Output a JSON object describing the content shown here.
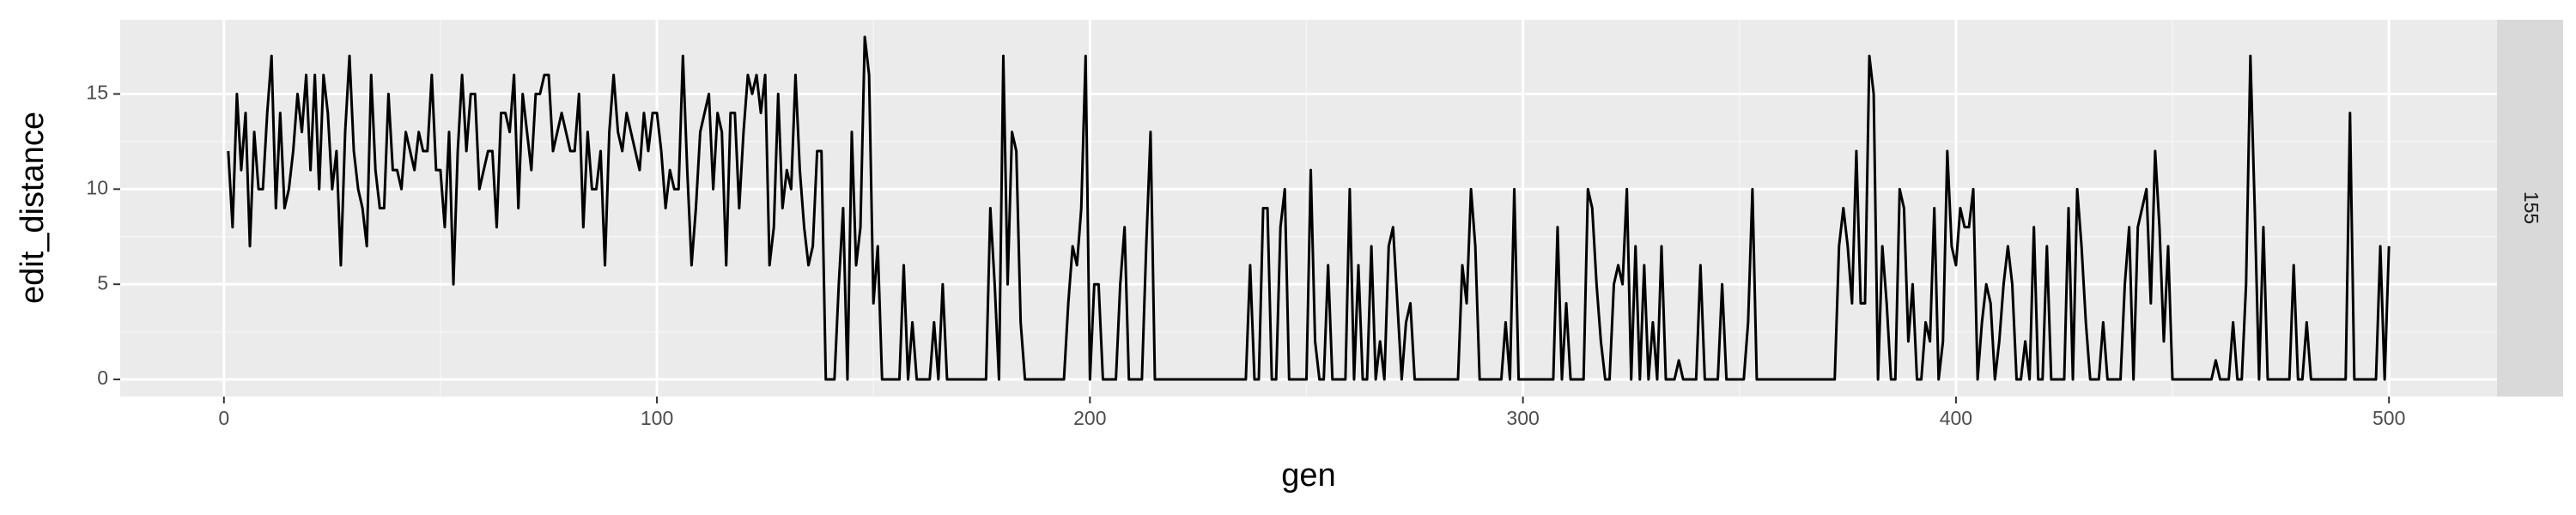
{
  "chart_data": {
    "type": "line",
    "x_label": "gen",
    "y_label": "edit_distance",
    "facet_label": "155",
    "x": [
      1,
      2,
      3,
      4,
      5,
      6,
      7,
      8,
      9,
      10,
      11,
      12,
      13,
      14,
      15,
      16,
      17,
      18,
      19,
      20,
      21,
      22,
      23,
      24,
      25,
      26,
      27,
      28,
      29,
      30,
      31,
      32,
      33,
      34,
      35,
      36,
      37,
      38,
      39,
      40,
      41,
      42,
      43,
      44,
      45,
      46,
      47,
      48,
      49,
      50,
      51,
      52,
      53,
      54,
      55,
      56,
      57,
      58,
      59,
      60,
      61,
      62,
      63,
      64,
      65,
      66,
      67,
      68,
      69,
      70,
      71,
      72,
      73,
      74,
      75,
      76,
      77,
      78,
      79,
      80,
      81,
      82,
      83,
      84,
      85,
      86,
      87,
      88,
      89,
      90,
      91,
      92,
      93,
      94,
      95,
      96,
      97,
      98,
      99,
      100,
      101,
      102,
      103,
      104,
      105,
      106,
      107,
      108,
      109,
      110,
      111,
      112,
      113,
      114,
      115,
      116,
      117,
      118,
      119,
      120,
      121,
      122,
      123,
      124,
      125,
      126,
      127,
      128,
      129,
      130,
      131,
      132,
      133,
      134,
      135,
      136,
      137,
      138,
      139,
      140,
      141,
      142,
      143,
      144,
      145,
      146,
      147,
      148,
      149,
      150,
      151,
      152,
      153,
      154,
      155,
      156,
      157,
      158,
      159,
      160,
      161,
      162,
      163,
      164,
      165,
      166,
      167,
      168,
      169,
      170,
      171,
      172,
      173,
      174,
      175,
      176,
      177,
      178,
      179,
      180,
      181,
      182,
      183,
      184,
      185,
      186,
      187,
      188,
      189,
      190,
      191,
      192,
      193,
      194,
      195,
      196,
      197,
      198,
      199,
      200,
      201,
      202,
      203,
      204,
      205,
      206,
      207,
      208,
      209,
      210,
      211,
      212,
      213,
      214,
      215,
      216,
      217,
      218,
      219,
      220,
      221,
      222,
      223,
      224,
      225,
      226,
      227,
      228,
      229,
      230,
      231,
      232,
      233,
      234,
      235,
      236,
      237,
      238,
      239,
      240,
      241,
      242,
      243,
      244,
      245,
      246,
      247,
      248,
      249,
      250,
      251,
      252,
      253,
      254,
      255,
      256,
      257,
      258,
      259,
      260,
      261,
      262,
      263,
      264,
      265,
      266,
      267,
      268,
      269,
      270,
      271,
      272,
      273,
      274,
      275,
      276,
      277,
      278,
      279,
      280,
      281,
      282,
      283,
      284,
      285,
      286,
      287,
      288,
      289,
      290,
      291,
      292,
      293,
      294,
      295,
      296,
      297,
      298,
      299,
      300,
      301,
      302,
      303,
      304,
      305,
      306,
      307,
      308,
      309,
      310,
      311,
      312,
      313,
      314,
      315,
      316,
      317,
      318,
      319,
      320,
      321,
      322,
      323,
      324,
      325,
      326,
      327,
      328,
      329,
      330,
      331,
      332,
      333,
      334,
      335,
      336,
      337,
      338,
      339,
      340,
      341,
      342,
      343,
      344,
      345,
      346,
      347,
      348,
      349,
      350,
      351,
      352,
      353,
      354,
      355,
      356,
      357,
      358,
      359,
      360,
      361,
      362,
      363,
      364,
      365,
      366,
      367,
      368,
      369,
      370,
      371,
      372,
      373,
      374,
      375,
      376,
      377,
      378,
      379,
      380,
      381,
      382,
      383,
      384,
      385,
      386,
      387,
      388,
      389,
      390,
      391,
      392,
      393,
      394,
      395,
      396,
      397,
      398,
      399,
      400,
      401,
      402,
      403,
      404,
      405,
      406,
      407,
      408,
      409,
      410,
      411,
      412,
      413,
      414,
      415,
      416,
      417,
      418,
      419,
      420,
      421,
      422,
      423,
      424,
      425,
      426,
      427,
      428,
      429,
      430,
      431,
      432,
      433,
      434,
      435,
      436,
      437,
      438,
      439,
      440,
      441,
      442,
      443,
      444,
      445,
      446,
      447,
      448,
      449,
      450,
      451,
      452,
      453,
      454,
      455,
      456,
      457,
      458,
      459,
      460,
      461,
      462,
      463,
      464,
      465,
      466,
      467,
      468,
      469,
      470,
      471,
      472,
      473,
      474,
      475,
      476,
      477,
      478,
      479,
      480,
      481,
      482,
      483,
      484,
      485,
      486,
      487,
      488,
      489,
      490,
      491,
      492,
      493,
      494,
      495,
      496,
      497,
      498,
      499,
      500
    ],
    "series": [
      {
        "color": "#000000",
        "values": [
          12,
          8,
          15,
          11,
          14,
          7,
          13,
          10,
          10,
          14,
          17,
          9,
          14,
          9,
          10,
          12,
          15,
          13,
          16,
          11,
          16,
          10,
          16,
          14,
          10,
          12,
          6,
          13,
          17,
          12,
          10,
          9,
          7,
          16,
          11,
          9,
          9,
          15,
          11,
          11,
          10,
          13,
          12,
          11,
          13,
          12,
          12,
          16,
          11,
          11,
          8,
          13,
          5,
          12,
          16,
          12,
          15,
          15,
          10,
          11,
          12,
          12,
          8,
          14,
          14,
          13,
          16,
          9,
          15,
          13,
          11,
          15,
          15,
          16,
          16,
          12,
          13,
          14,
          13,
          12,
          12,
          15,
          8,
          13,
          10,
          10,
          12,
          6,
          13,
          16,
          13,
          12,
          14,
          13,
          12,
          11,
          14,
          12,
          14,
          14,
          12,
          9,
          11,
          10,
          10,
          17,
          11,
          6,
          9,
          13,
          14,
          15,
          10,
          14,
          13,
          6,
          14,
          14,
          9,
          13,
          16,
          15,
          16,
          14,
          16,
          6,
          8,
          15,
          9,
          11,
          10,
          16,
          11,
          8,
          6,
          7,
          12,
          12,
          0,
          0,
          0,
          5,
          9,
          0,
          13,
          6,
          8,
          18,
          16,
          4,
          7,
          0,
          0,
          0,
          0,
          0,
          6,
          0,
          3,
          0,
          0,
          0,
          0,
          3,
          0,
          5,
          0,
          0,
          0,
          0,
          0,
          0,
          0,
          0,
          0,
          0,
          9,
          5,
          0,
          17,
          5,
          13,
          12,
          3,
          0,
          0,
          0,
          0,
          0,
          0,
          0,
          0,
          0,
          0,
          4,
          7,
          6,
          9,
          17,
          0,
          5,
          5,
          0,
          0,
          0,
          0,
          5,
          8,
          0,
          0,
          0,
          0,
          7,
          13,
          0,
          0,
          0,
          0,
          0,
          0,
          0,
          0,
          0,
          0,
          0,
          0,
          0,
          0,
          0,
          0,
          0,
          0,
          0,
          0,
          0,
          0,
          6,
          0,
          0,
          9,
          9,
          0,
          0,
          8,
          10,
          0,
          0,
          0,
          0,
          0,
          11,
          2,
          0,
          0,
          6,
          0,
          0,
          0,
          0,
          10,
          0,
          6,
          0,
          0,
          7,
          0,
          2,
          0,
          7,
          8,
          4,
          0,
          3,
          4,
          0,
          0,
          0,
          0,
          0,
          0,
          0,
          0,
          0,
          0,
          0,
          6,
          4,
          10,
          7,
          0,
          0,
          0,
          0,
          0,
          0,
          3,
          0,
          10,
          0,
          0,
          0,
          0,
          0,
          0,
          0,
          0,
          0,
          8,
          0,
          4,
          0,
          0,
          0,
          0,
          10,
          9,
          5,
          2,
          0,
          0,
          5,
          6,
          5,
          10,
          0,
          7,
          0,
          6,
          0,
          3,
          0,
          7,
          0,
          0,
          0,
          1,
          0,
          0,
          0,
          0,
          6,
          0,
          0,
          0,
          0,
          5,
          0,
          0,
          0,
          0,
          0,
          3,
          10,
          0,
          0,
          0,
          0,
          0,
          0,
          0,
          0,
          0,
          0,
          0,
          0,
          0,
          0,
          0,
          0,
          0,
          0,
          0,
          7,
          9,
          7,
          4,
          12,
          4,
          4,
          17,
          15,
          0,
          7,
          4,
          0,
          0,
          10,
          9,
          2,
          5,
          0,
          0,
          3,
          2,
          9,
          0,
          2,
          12,
          7,
          6,
          9,
          8,
          8,
          10,
          0,
          3,
          5,
          4,
          0,
          2,
          5,
          7,
          5,
          0,
          0,
          2,
          0,
          8,
          0,
          0,
          7,
          0,
          0,
          0,
          0,
          9,
          0,
          10,
          7,
          3,
          0,
          0,
          0,
          3,
          0,
          0,
          0,
          0,
          5,
          8,
          0,
          8,
          9,
          10,
          4,
          12,
          8,
          2,
          7,
          0,
          0,
          0,
          0,
          0,
          0,
          0,
          0,
          0,
          0,
          1,
          0,
          0,
          0,
          3,
          0,
          0,
          5,
          17,
          9,
          0,
          8,
          0,
          0,
          0,
          0,
          0,
          0,
          6,
          0,
          0,
          3,
          0,
          0,
          0,
          0,
          0,
          0,
          0,
          0,
          0,
          14,
          0,
          0,
          0,
          0,
          0,
          0,
          7,
          0,
          7
        ]
      }
    ],
    "xlim": [
      -23.95,
      524.95
    ],
    "xticks": [
      0,
      100,
      200,
      300,
      400,
      500
    ],
    "ylim": [
      -0.9,
      18.9
    ],
    "yticks": [
      0,
      5,
      10,
      15
    ],
    "grid": true
  }
}
